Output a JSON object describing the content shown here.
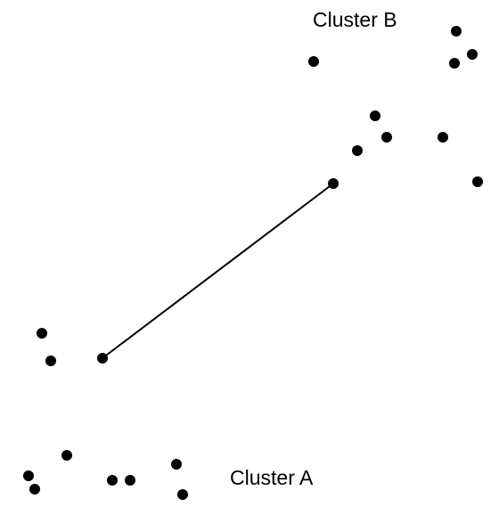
{
  "colors": {
    "point": "#000000",
    "line": "#000000",
    "background": "#ffffff"
  },
  "labels": {
    "cluster_a": "Cluster A",
    "cluster_b": "Cluster B"
  }
}
